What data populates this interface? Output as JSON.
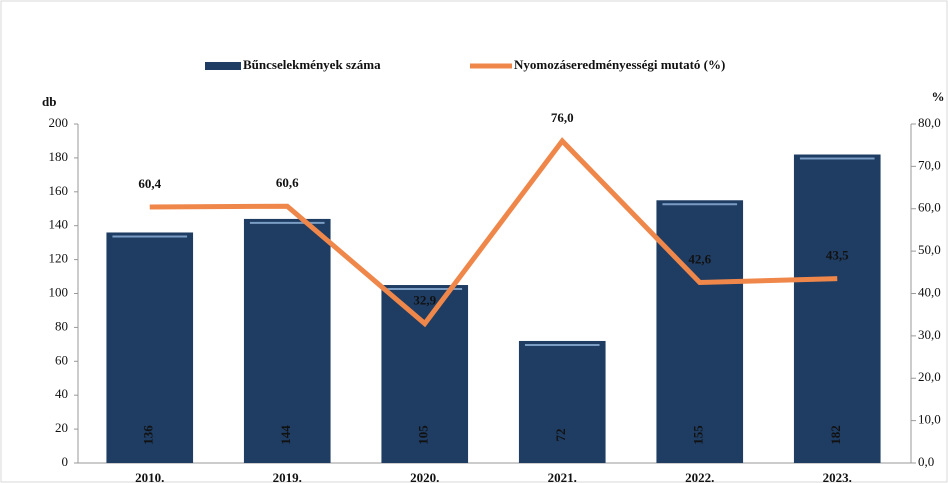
{
  "chart_data": {
    "type": "bar",
    "categories": [
      "2010.",
      "2019.",
      "2020.",
      "2021.",
      "2022.",
      "2023."
    ],
    "series": [
      {
        "name": "Bűncselekmények száma",
        "type": "bar",
        "color": "#1f3d63",
        "values": [
          136,
          144,
          105,
          72,
          155,
          182
        ]
      },
      {
        "name": "Nyomozáseredményességi mutató (%)",
        "type": "line",
        "axis": "y2",
        "color": "#f0874a",
        "values": [
          60.4,
          60.6,
          32.9,
          76.0,
          42.6,
          43.5
        ],
        "value_labels": [
          "60,4",
          "60,6",
          "32,9",
          "76,0",
          "42,6",
          "43,5"
        ]
      }
    ],
    "y_label": "db",
    "y2_label": "%",
    "ylim": [
      0,
      200
    ],
    "yticks": [
      0,
      20,
      40,
      60,
      80,
      100,
      120,
      140,
      160,
      180,
      200
    ],
    "y2lim": [
      0,
      80
    ],
    "y2ticks": [
      {
        "value": 0,
        "label": "0,0"
      },
      {
        "value": 10,
        "label": "10,0"
      },
      {
        "value": 20,
        "label": "20,0"
      },
      {
        "value": 30,
        "label": "30,0"
      },
      {
        "value": 40,
        "label": "40,0"
      },
      {
        "value": 50,
        "label": "50,0"
      },
      {
        "value": 60,
        "label": "60,0"
      },
      {
        "value": 70,
        "label": "70,0"
      },
      {
        "value": 80,
        "label": "80,0"
      }
    ],
    "legend": "top",
    "grid": false
  }
}
